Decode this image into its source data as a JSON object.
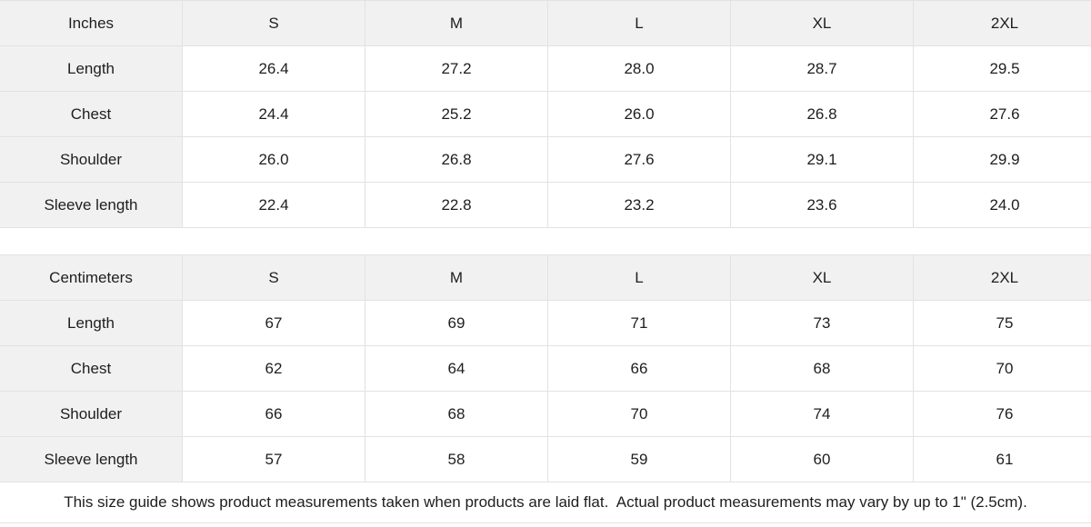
{
  "colors": {
    "header_bg": "#f1f1f1",
    "cell_bg": "#ffffff",
    "border": "#e2e2e2",
    "text": "#1e1e1e"
  },
  "tables": [
    {
      "unit_label": "Inches",
      "sizes": [
        "S",
        "M",
        "L",
        "XL",
        "2XL"
      ],
      "rows": [
        {
          "label": "Length",
          "values": [
            "26.4",
            "27.2",
            "28.0",
            "28.7",
            "29.5"
          ]
        },
        {
          "label": "Chest",
          "values": [
            "24.4",
            "25.2",
            "26.0",
            "26.8",
            "27.6"
          ]
        },
        {
          "label": "Shoulder",
          "values": [
            "26.0",
            "26.8",
            "27.6",
            "29.1",
            "29.9"
          ]
        },
        {
          "label": "Sleeve length",
          "values": [
            "22.4",
            "22.8",
            "23.2",
            "23.6",
            "24.0"
          ]
        }
      ]
    },
    {
      "unit_label": "Centimeters",
      "sizes": [
        "S",
        "M",
        "L",
        "XL",
        "2XL"
      ],
      "rows": [
        {
          "label": "Length",
          "values": [
            "67",
            "69",
            "71",
            "73",
            "75"
          ]
        },
        {
          "label": "Chest",
          "values": [
            "62",
            "64",
            "66",
            "68",
            "70"
          ]
        },
        {
          "label": "Shoulder",
          "values": [
            "66",
            "68",
            "70",
            "74",
            "76"
          ]
        },
        {
          "label": "Sleeve length",
          "values": [
            "57",
            "58",
            "59",
            "60",
            "61"
          ]
        }
      ]
    }
  ],
  "footer": {
    "note": "This size guide shows product measurements taken when products are laid flat.  Actual product measurements may vary by up to 1\" (2.5cm)."
  }
}
